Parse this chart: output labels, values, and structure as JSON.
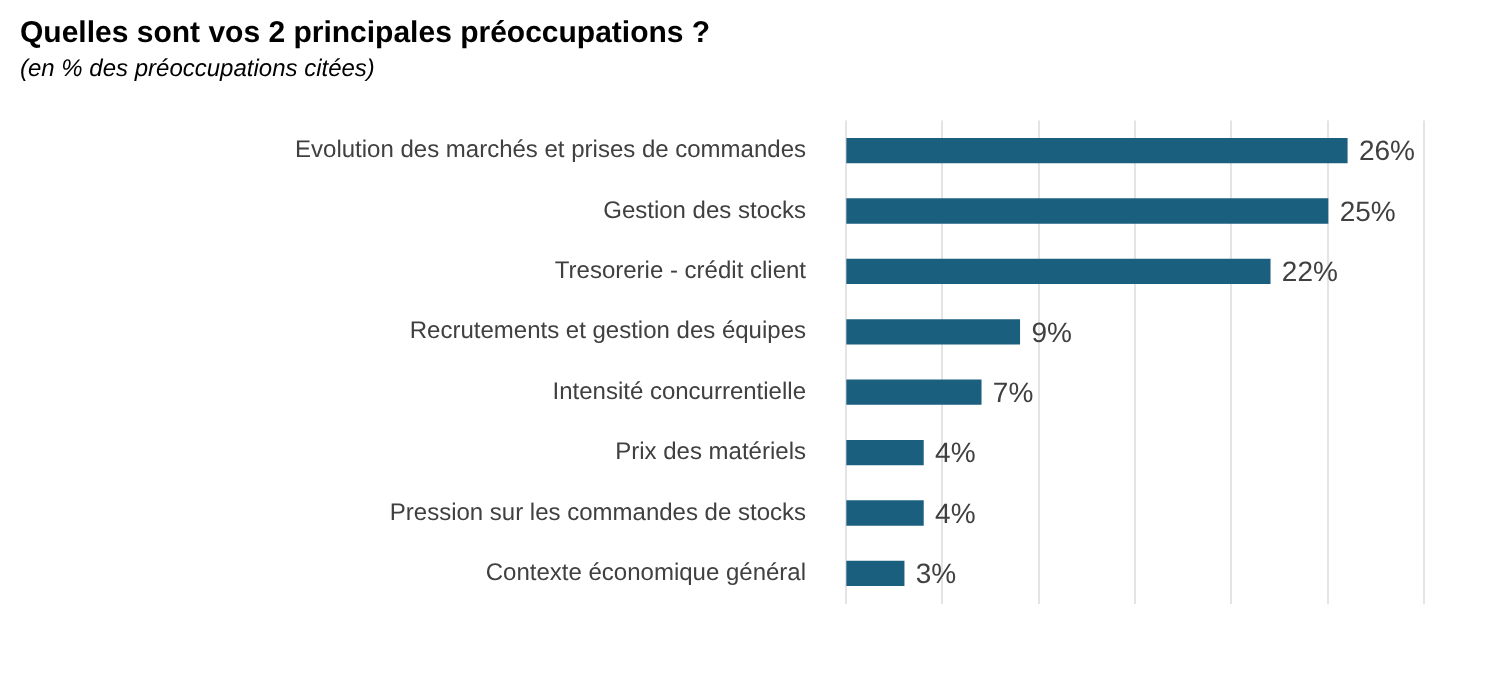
{
  "chart_data": {
    "type": "bar",
    "orientation": "horizontal",
    "title": "Quelles sont vos 2 principales préoccupations ?",
    "subtitle": "(en % des préoccupations citées)",
    "categories": [
      "Evolution des marchés et prises de commandes",
      "Gestion des stocks",
      "Tresorerie - crédit client",
      "Recrutements et gestion des équipes",
      "Intensité concurrentielle",
      "Prix des matériels",
      "Pression sur les commandes de stocks",
      "Contexte économique général"
    ],
    "values": [
      26,
      25,
      22,
      9,
      7,
      4,
      4,
      3
    ],
    "value_labels": [
      "26%",
      "25%",
      "22%",
      "9%",
      "7%",
      "4%",
      "4%",
      "3%"
    ],
    "color": "#1b5f7f",
    "xlim": [
      0,
      30
    ],
    "xticks": [
      {
        "value": 0,
        "label": null
      },
      {
        "value": 5,
        "label": null
      },
      {
        "value": 10,
        "label": null
      },
      {
        "value": 15,
        "label": null
      },
      {
        "value": 20,
        "label": null
      },
      {
        "value": 25,
        "label": null
      },
      {
        "value": 30,
        "label": null
      }
    ],
    "grid": "x",
    "legend": false,
    "tick_labels": "y"
  }
}
